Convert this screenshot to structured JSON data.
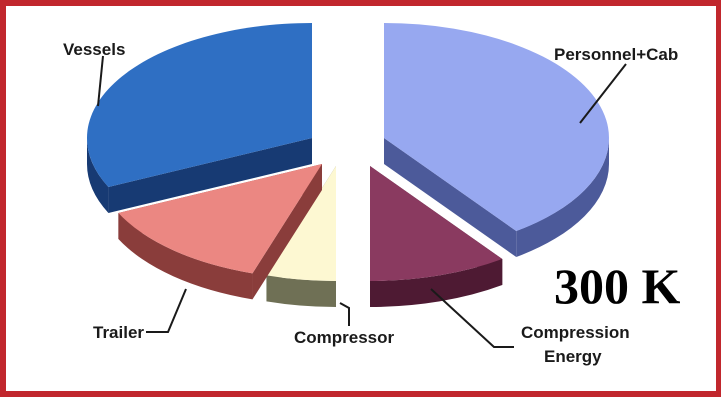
{
  "chart_data": {
    "type": "pie",
    "exploded": true,
    "three_d": true,
    "slices": [
      {
        "label": "Personnel+Cab",
        "value": 40,
        "top": "#97a8f0",
        "side": "#4c5a9a"
      },
      {
        "label": "Compression Energy",
        "value": 10,
        "top": "#8a3a60",
        "side": "#4e1a33"
      },
      {
        "label": "Compressor",
        "value": 5,
        "top": "#fdf8d2",
        "side": "#6f7055"
      },
      {
        "label": "Trailer",
        "value": 13,
        "top": "#eb8782",
        "side": "#8a3d3b"
      },
      {
        "label": "Vessels",
        "value": 32,
        "top": "#2f6fc3",
        "side": "#173a73"
      }
    ],
    "annotation": "300 K",
    "label_lines": [
      "Compression",
      "Energy"
    ]
  },
  "colors": {
    "frame": "#c1272d"
  }
}
